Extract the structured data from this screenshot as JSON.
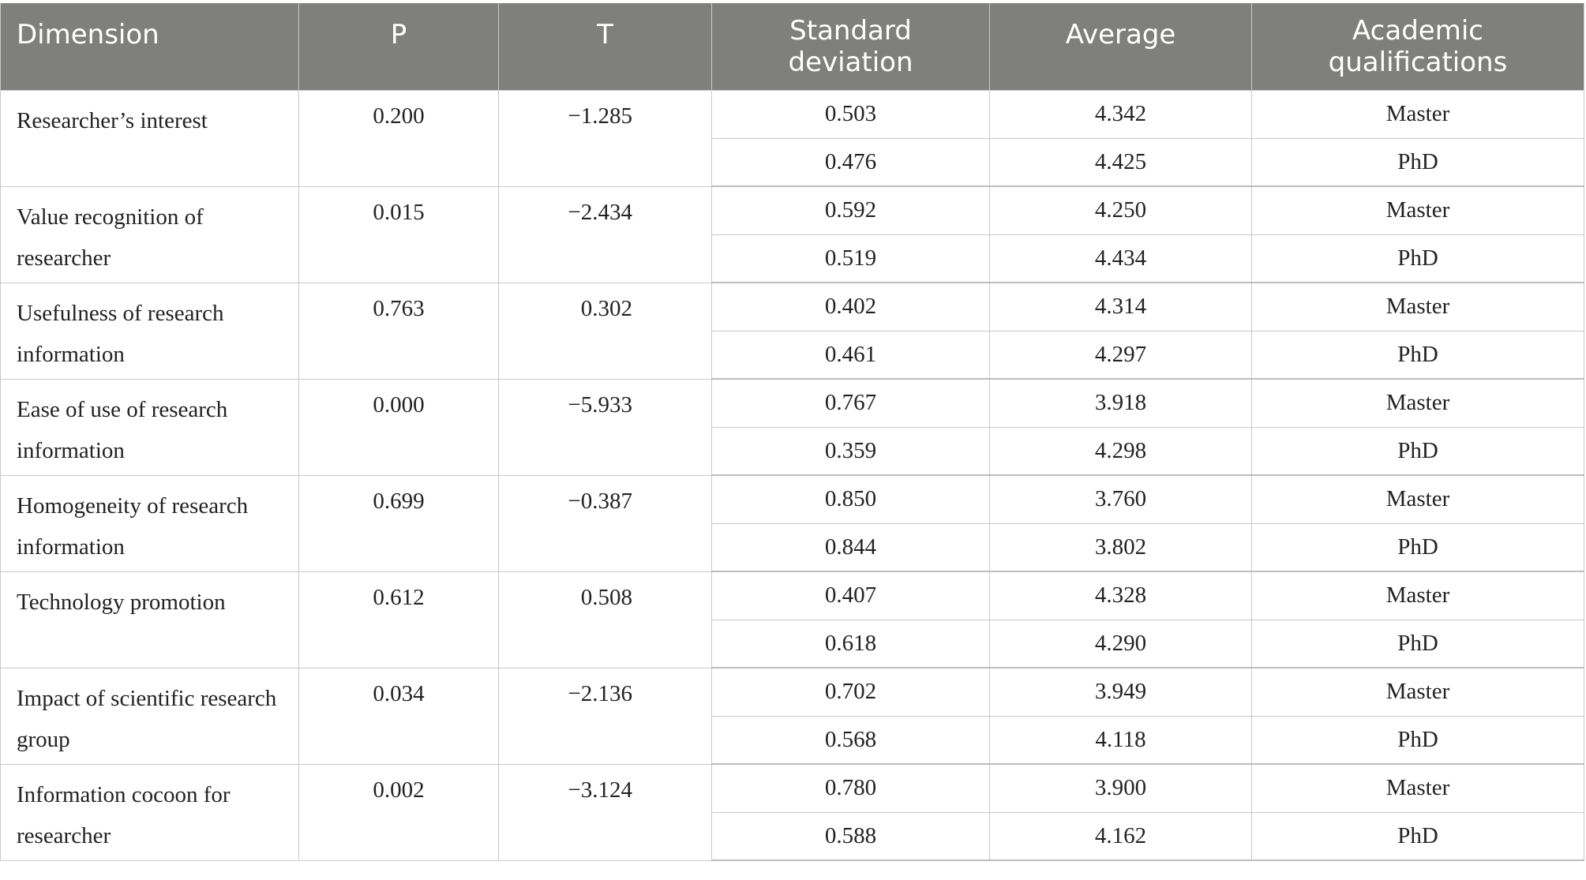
{
  "table": {
    "headers": {
      "dimension": "Dimension",
      "p": "P",
      "t": "T",
      "sd_line1": "Standard",
      "sd_line2": "deviation",
      "average": "Average",
      "qual_line1": "Academic",
      "qual_line2": "qualifications"
    },
    "rows": [
      {
        "dimension": "Researcher’s interest",
        "p": "0.200",
        "t": "−1.285",
        "sub": [
          {
            "sd": "0.503",
            "avg": "4.342",
            "qual": "Master"
          },
          {
            "sd": "0.476",
            "avg": "4.425",
            "qual": "PhD"
          }
        ]
      },
      {
        "dimension": "Value recognition of researcher",
        "p": "0.015",
        "t": "−2.434",
        "sub": [
          {
            "sd": "0.592",
            "avg": "4.250",
            "qual": "Master"
          },
          {
            "sd": "0.519",
            "avg": "4.434",
            "qual": "PhD"
          }
        ]
      },
      {
        "dimension": "Usefulness of research information",
        "p": "0.763",
        "t": "0.302",
        "sub": [
          {
            "sd": "0.402",
            "avg": "4.314",
            "qual": "Master"
          },
          {
            "sd": "0.461",
            "avg": "4.297",
            "qual": "PhD"
          }
        ]
      },
      {
        "dimension": "Ease of use of research information",
        "p": "0.000",
        "t": "−5.933",
        "sub": [
          {
            "sd": "0.767",
            "avg": "3.918",
            "qual": "Master"
          },
          {
            "sd": "0.359",
            "avg": "4.298",
            "qual": "PhD"
          }
        ]
      },
      {
        "dimension": "Homogeneity of research information",
        "p": "0.699",
        "t": "−0.387",
        "sub": [
          {
            "sd": "0.850",
            "avg": "3.760",
            "qual": "Master"
          },
          {
            "sd": "0.844",
            "avg": "3.802",
            "qual": "PhD"
          }
        ]
      },
      {
        "dimension": "Technology promotion",
        "p": "0.612",
        "t": "0.508",
        "sub": [
          {
            "sd": "0.407",
            "avg": "4.328",
            "qual": "Master"
          },
          {
            "sd": "0.618",
            "avg": "4.290",
            "qual": "PhD"
          }
        ]
      },
      {
        "dimension": "Impact of scientific research group",
        "p": "0.034",
        "t": "−2.136",
        "sub": [
          {
            "sd": "0.702",
            "avg": "3.949",
            "qual": "Master"
          },
          {
            "sd": "0.568",
            "avg": "4.118",
            "qual": "PhD"
          }
        ]
      },
      {
        "dimension": "Information cocoon for researcher",
        "p": "0.002",
        "t": "−3.124",
        "sub": [
          {
            "sd": "0.780",
            "avg": "3.900",
            "qual": "Master"
          },
          {
            "sd": "0.588",
            "avg": "4.162",
            "qual": "PhD"
          }
        ]
      }
    ]
  }
}
